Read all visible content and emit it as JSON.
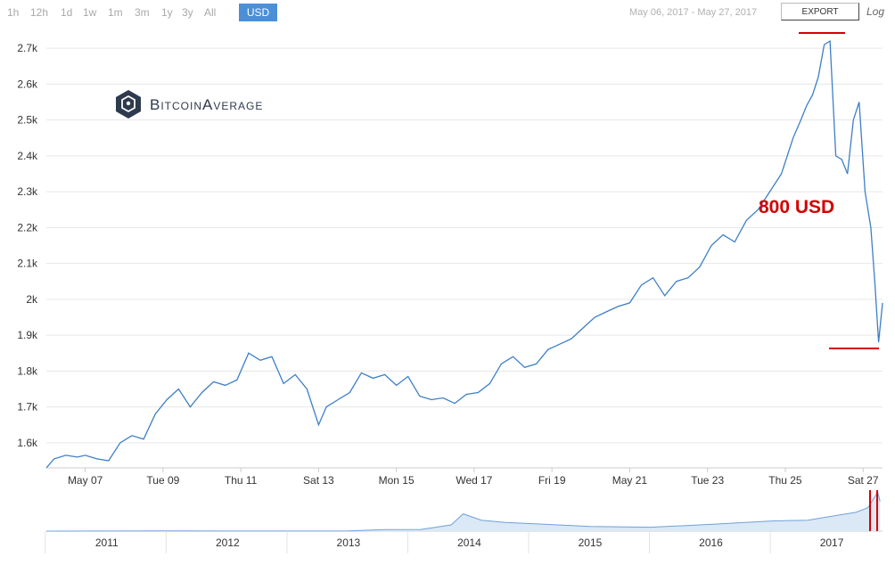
{
  "toolbar": {
    "ranges": [
      "1h",
      "12h",
      "1d",
      "1w",
      "1m",
      "3m",
      "1y",
      "3y",
      "All"
    ],
    "currency": "USD",
    "date_range": "May 06, 2017 - May 27, 2017",
    "export_label": "EXPORT",
    "log_label": "Log"
  },
  "logo": {
    "text": "BitcoinAverage"
  },
  "annotation": {
    "text": "800 USD",
    "color": "#d40000"
  },
  "colors": {
    "line": "#3d7fc7",
    "accent": "#4a8fd8",
    "annotation": "#d40000",
    "grid": "#e6e6e6"
  },
  "chart_data": [
    {
      "type": "line",
      "series": [
        {
          "x": [
            6.0,
            6.2,
            6.5,
            6.8,
            7.0,
            7.3,
            7.6,
            7.9,
            8.2,
            8.5,
            8.8,
            9.1,
            9.4,
            9.7,
            10.0,
            10.3,
            10.6,
            10.9,
            11.2,
            11.5,
            11.8,
            12.1,
            12.4,
            12.7,
            13.0,
            13.2,
            13.5,
            13.8,
            14.1,
            14.4,
            14.7,
            15.0,
            15.3,
            15.6,
            15.9,
            16.2,
            16.5,
            16.8,
            17.1,
            17.4,
            17.7,
            18.0,
            18.3,
            18.6,
            18.9,
            19.2,
            19.5,
            19.8,
            20.1,
            20.4,
            20.7,
            21.0,
            21.3,
            21.6,
            21.9,
            22.2,
            22.5,
            22.8,
            23.1,
            23.4,
            23.7,
            24.0,
            24.3,
            24.6,
            24.9,
            25.2,
            25.4,
            25.55,
            25.7,
            25.85,
            26.0,
            26.15,
            26.3,
            26.45,
            26.6,
            26.75,
            26.9,
            27.05,
            27.2,
            27.3,
            27.4,
            27.5
          ],
          "y": [
            1530,
            1555,
            1565,
            1560,
            1565,
            1555,
            1550,
            1600,
            1620,
            1610,
            1680,
            1720,
            1750,
            1700,
            1740,
            1770,
            1760,
            1775,
            1850,
            1830,
            1840,
            1765,
            1790,
            1750,
            1650,
            1700,
            1720,
            1740,
            1795,
            1780,
            1790,
            1760,
            1785,
            1730,
            1720,
            1725,
            1710,
            1735,
            1740,
            1765,
            1820,
            1840,
            1810,
            1820,
            1860,
            1875,
            1890,
            1920,
            1950,
            1965,
            1980,
            1990,
            2040,
            2060,
            2010,
            2050,
            2060,
            2090,
            2150,
            2180,
            2160,
            2220,
            2250,
            2300,
            2350,
            2450,
            2500,
            2540,
            2570,
            2620,
            2710,
            2720,
            2400,
            2390,
            2350,
            2500,
            2550,
            2300,
            2200,
            2050,
            1880,
            1990
          ]
        }
      ],
      "xticks": [
        "May 07",
        "Tue 09",
        "Thu 11",
        "Sat 13",
        "Mon 15",
        "Wed 17",
        "Fri 19",
        "May 21",
        "Tue 23",
        "Thu 25",
        "Sat 27"
      ],
      "xtick_values": [
        7,
        9,
        11,
        13,
        15,
        17,
        19,
        21,
        23,
        25,
        27
      ],
      "yticks": [
        "1.6k",
        "1.7k",
        "1.8k",
        "1.9k",
        "2k",
        "2.1k",
        "2.2k",
        "2.3k",
        "2.4k",
        "2.5k",
        "2.6k",
        "2.7k"
      ],
      "ytick_values": [
        1600,
        1700,
        1800,
        1900,
        2000,
        2100,
        2200,
        2300,
        2400,
        2500,
        2600,
        2700
      ],
      "xlim": [
        6.0,
        27.5
      ],
      "ylim": [
        1530,
        2760
      ],
      "grid": true
    },
    {
      "type": "area",
      "series": [
        {
          "x": [
            2010.5,
            2011.0,
            2011.5,
            2012.0,
            2012.5,
            2013.0,
            2013.3,
            2013.6,
            2013.85,
            2013.95,
            2014.1,
            2014.3,
            2014.6,
            2015.0,
            2015.5,
            2016.0,
            2016.5,
            2016.8,
            2017.0,
            2017.2,
            2017.3,
            2017.38,
            2017.4
          ],
          "y": [
            0,
            5,
            15,
            5,
            8,
            13,
            100,
            110,
            400,
            1100,
            700,
            550,
            450,
            300,
            250,
            430,
            650,
            700,
            950,
            1200,
            1500,
            2500,
            1900
          ]
        }
      ],
      "xticks": [
        "2011",
        "2012",
        "2013",
        "2014",
        "2015",
        "2016",
        "2017"
      ],
      "xtick_values": [
        2011,
        2012,
        2013,
        2014,
        2015,
        2016,
        2017
      ],
      "xlim": [
        2010.5,
        2017.42
      ]
    }
  ]
}
